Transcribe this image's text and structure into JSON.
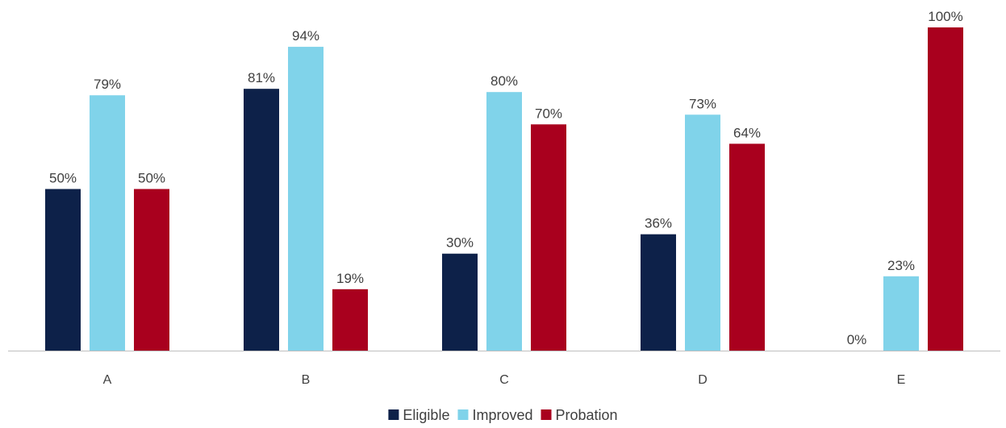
{
  "chart_data": {
    "type": "bar",
    "categories": [
      "A",
      "B",
      "C",
      "D",
      "E"
    ],
    "series": [
      {
        "name": "Eligible",
        "color": "#0d2149",
        "values": [
          50,
          81,
          30,
          36,
          0
        ]
      },
      {
        "name": "Improved",
        "color": "#80d3ea",
        "values": [
          79,
          94,
          80,
          73,
          23
        ]
      },
      {
        "name": "Probation",
        "color": "#a9001e",
        "values": [
          50,
          19,
          70,
          64,
          100
        ]
      }
    ],
    "data_labels": [
      [
        "50%",
        "81%",
        "30%",
        "36%",
        "0%"
      ],
      [
        "79%",
        "94%",
        "80%",
        "73%",
        "23%"
      ],
      [
        "50%",
        "19%",
        "70%",
        "64%",
        "100%"
      ]
    ],
    "title": "",
    "xlabel": "",
    "ylabel": "",
    "ylim": [
      0,
      100
    ],
    "grid": false,
    "legend_position": "bottom-center",
    "axis_color": "#bfbfbf"
  }
}
